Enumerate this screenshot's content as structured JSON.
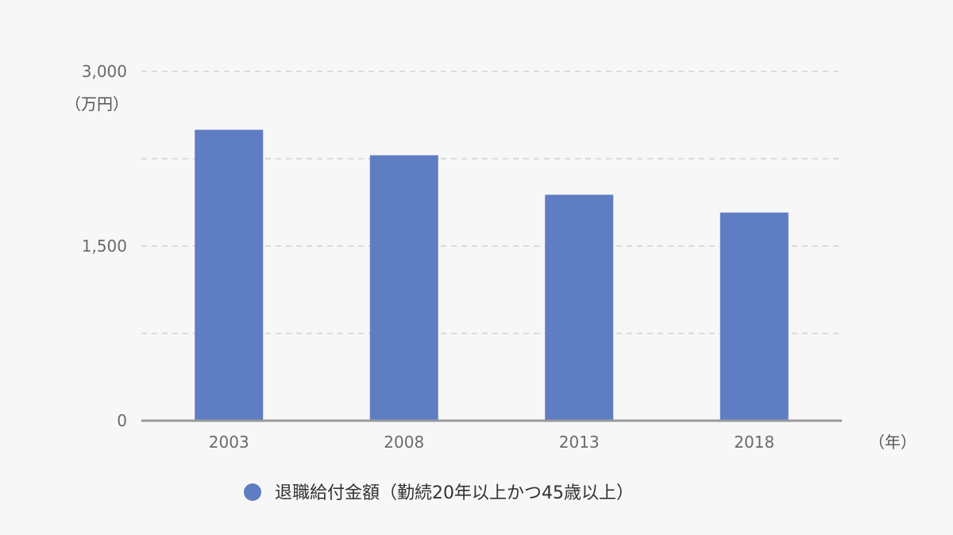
{
  "chart_data": {
    "type": "bar",
    "categories": [
      "2003",
      "2008",
      "2013",
      "2018"
    ],
    "series": [
      {
        "name": "退職給付金額（勤続20年以上かつ45歳以上）",
        "values": [
          2499,
          2280,
          1941,
          1788
        ],
        "color": "#5f7dc3"
      }
    ],
    "y_ticks": [
      0,
      1500,
      3000
    ],
    "y_tick_labels": [
      "0",
      "1,500",
      "3,000"
    ],
    "ylim": [
      0,
      3000
    ],
    "y_unit": "（万円）",
    "x_unit": "（年）",
    "grid": true,
    "legend_position": "bottom-center"
  }
}
